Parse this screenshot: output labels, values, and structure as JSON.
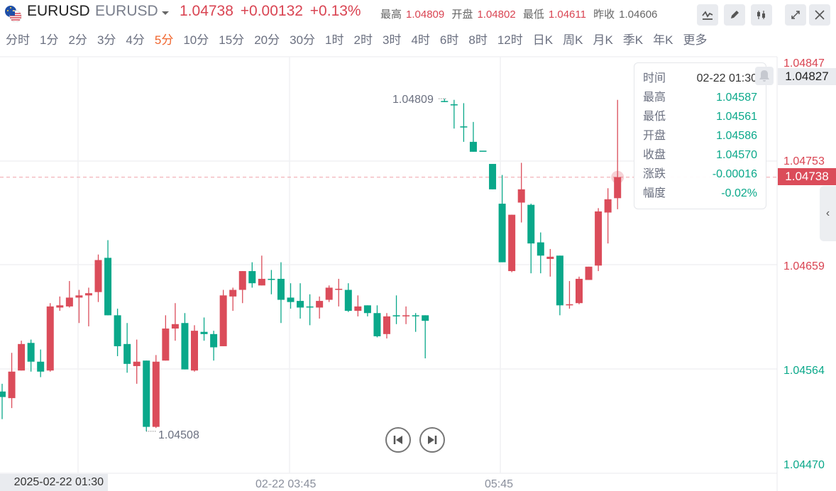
{
  "header": {
    "symbol": "EURUSD",
    "symbol_name": "EURUSD",
    "last": "1.04738",
    "change": "+0.00132",
    "change_pct": "+0.13%",
    "stats": [
      {
        "label": "最高",
        "value": "1.04809",
        "color": "red"
      },
      {
        "label": "开盘",
        "value": "1.04802",
        "color": "red"
      },
      {
        "label": "最低",
        "value": "1.04611",
        "color": "red"
      },
      {
        "label": "昨收",
        "value": "1.04606",
        "color": "neutral"
      }
    ],
    "tools": [
      "indicator-icon",
      "draw-pencil-icon",
      "candle-type-icon",
      "fullscreen-icon",
      "close-icon"
    ]
  },
  "tabs": [
    "分时",
    "1分",
    "2分",
    "3分",
    "4分",
    "5分",
    "10分",
    "15分",
    "20分",
    "30分",
    "1时",
    "2时",
    "3时",
    "4时",
    "6时",
    "8时",
    "12时",
    "日K",
    "周K",
    "月K",
    "季K",
    "年K",
    "更多"
  ],
  "active_tab": "5分",
  "tooltip": {
    "rows": [
      {
        "label": "时间",
        "value": "02-22 01:30"
      },
      {
        "label": "最高",
        "value": "1.04587"
      },
      {
        "label": "最低",
        "value": "1.04561"
      },
      {
        "label": "开盘",
        "value": "1.04586"
      },
      {
        "label": "收盘",
        "value": "1.04570"
      },
      {
        "label": "涨跌",
        "value": "-0.00016"
      },
      {
        "label": "幅度",
        "value": "-0.02%"
      }
    ]
  },
  "colors": {
    "up": "#db4c5a",
    "down": "#0aa88a",
    "accent": "#f0652d"
  },
  "chart_data": {
    "type": "candlestick",
    "up_color": "red",
    "down_color": "green",
    "ylim": [
      1.0447,
      1.04847
    ],
    "y_ticks": [
      "1.04847",
      "1.04753",
      "1.04659",
      "1.04564",
      "1.04470"
    ],
    "x_ticks": [
      "02-22 03:45",
      "05:45"
    ],
    "crosshair_time": "2025-02-22 01:30",
    "crosshair_price": "1.04827",
    "last_price": "1.04738",
    "max_label": "1.04809",
    "min_label": "1.04508",
    "grid": true,
    "candles": [
      [
        1.04544,
        1.04551,
        1.04519,
        1.04539
      ],
      [
        1.04538,
        1.04579,
        1.04529,
        1.04562
      ],
      [
        1.04563,
        1.0459,
        1.04563,
        1.04587
      ],
      [
        1.04588,
        1.04591,
        1.04562,
        1.04571
      ],
      [
        1.04571,
        1.04582,
        1.04557,
        1.04562
      ],
      [
        1.04563,
        1.04624,
        1.04562,
        1.04621
      ],
      [
        1.0462,
        1.0463,
        1.04617,
        1.04622
      ],
      [
        1.04621,
        1.04644,
        1.0462,
        1.04629
      ],
      [
        1.04629,
        1.04636,
        1.04606,
        1.04631
      ],
      [
        1.04631,
        1.04638,
        1.04603,
        1.04633
      ],
      [
        1.04634,
        1.04668,
        1.04625,
        1.04663
      ],
      [
        1.04665,
        1.04681,
        1.04613,
        1.04613
      ],
      [
        1.04613,
        1.04619,
        1.04576,
        1.04585
      ],
      [
        1.04587,
        1.04606,
        1.04561,
        1.04569
      ],
      [
        1.04567,
        1.04591,
        1.04551,
        1.04571
      ],
      [
        1.04572,
        1.04572,
        1.04508,
        1.04512
      ],
      [
        1.04512,
        1.04577,
        1.04511,
        1.04571
      ],
      [
        1.04572,
        1.04613,
        1.04572,
        1.04601
      ],
      [
        1.04601,
        1.04624,
        1.0459,
        1.04605
      ],
      [
        1.04606,
        1.04615,
        1.04564,
        1.04564
      ],
      [
        1.04563,
        1.04604,
        1.04562,
        1.04599
      ],
      [
        1.04598,
        1.04611,
        1.0459,
        1.04596
      ],
      [
        1.04596,
        1.04599,
        1.04572,
        1.04584
      ],
      [
        1.04585,
        1.04636,
        1.04585,
        1.04631
      ],
      [
        1.0463,
        1.04638,
        1.04617,
        1.04636
      ],
      [
        1.04636,
        1.04653,
        1.04624,
        1.04653
      ],
      [
        1.04653,
        1.04661,
        1.04638,
        1.04642
      ],
      [
        1.0464,
        1.04667,
        1.0464,
        1.04646
      ],
      [
        1.04646,
        1.04654,
        1.04632,
        1.04645
      ],
      [
        1.04646,
        1.04661,
        1.04606,
        1.04627
      ],
      [
        1.04629,
        1.04642,
        1.04619,
        1.04625
      ],
      [
        1.04626,
        1.04642,
        1.0461,
        1.0462
      ],
      [
        1.04621,
        1.04632,
        1.04604,
        1.0462
      ],
      [
        1.0462,
        1.0463,
        1.0461,
        1.04626
      ],
      [
        1.04627,
        1.0464,
        1.04625,
        1.04638
      ],
      [
        1.04636,
        1.04646,
        1.04621,
        1.04637
      ],
      [
        1.04636,
        1.04642,
        1.04616,
        1.04617
      ],
      [
        1.04617,
        1.04631,
        1.04612,
        1.04621
      ],
      [
        1.04622,
        1.04622,
        1.04612,
        1.04615
      ],
      [
        1.04615,
        1.04622,
        1.04593,
        1.04594
      ],
      [
        1.04596,
        1.04615,
        1.04592,
        1.04612
      ],
      [
        1.04613,
        1.04631,
        1.04605,
        1.04612
      ],
      [
        1.04612,
        1.04621,
        1.04605,
        1.04613
      ],
      [
        1.04613,
        1.04615,
        1.04598,
        1.04612
      ],
      [
        1.04613,
        1.04613,
        1.04574,
        1.04608
      ],
      null,
      [
        1.04807,
        1.04809,
        1.04806,
        1.04806
      ],
      [
        1.04804,
        1.04808,
        1.04782,
        1.04803
      ],
      [
        1.04784,
        1.04805,
        1.0477,
        1.04783
      ],
      [
        1.0477,
        1.04788,
        1.04761,
        1.04761
      ],
      [
        1.04762,
        1.04762,
        1.04762,
        1.04761
      ],
      [
        1.0475,
        1.0475,
        1.04727,
        1.04727
      ],
      [
        1.04714,
        1.0474,
        1.04661,
        1.04661
      ],
      [
        1.04653,
        1.04704,
        1.04652,
        1.04704
      ],
      [
        1.04715,
        1.04751,
        1.04697,
        1.04727
      ],
      [
        1.04713,
        1.04714,
        1.04651,
        1.04678
      ],
      [
        1.04679,
        1.04688,
        1.04651,
        1.04667
      ],
      [
        1.04664,
        1.04673,
        1.04648,
        1.04666
      ],
      [
        1.04667,
        1.04667,
        1.04613,
        1.04622
      ],
      [
        1.04622,
        1.04644,
        1.04619,
        1.04623
      ],
      [
        1.04624,
        1.04648,
        1.04623,
        1.04646
      ],
      [
        1.04645,
        1.04657,
        1.04645,
        1.04657
      ],
      [
        1.04658,
        1.0471,
        1.04653,
        1.04707
      ],
      [
        1.04706,
        1.04728,
        1.04678,
        1.04718
      ],
      [
        1.04719,
        1.04808,
        1.04709,
        1.04738
      ]
    ]
  }
}
